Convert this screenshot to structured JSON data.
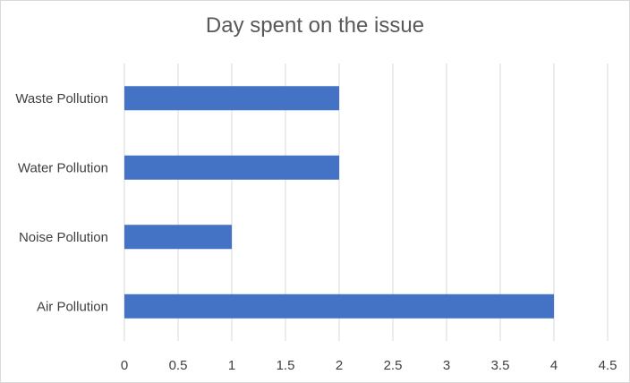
{
  "chart_data": {
    "type": "bar",
    "orientation": "horizontal",
    "title": "Day spent on the issue",
    "categories": [
      "Air Pollution",
      "Noise Pollution",
      "Water Pollution",
      "Waste Pollution"
    ],
    "values": [
      4,
      1,
      2,
      2
    ],
    "xlim": [
      0,
      4.5
    ],
    "xticks": [
      "0",
      "0.5",
      "1",
      "1.5",
      "2",
      "2.5",
      "3",
      "3.5",
      "4",
      "4.5"
    ],
    "grid": "vertical",
    "legend": "none",
    "bar_color": "#4472C4",
    "grid_color": "#d9d9d9"
  }
}
